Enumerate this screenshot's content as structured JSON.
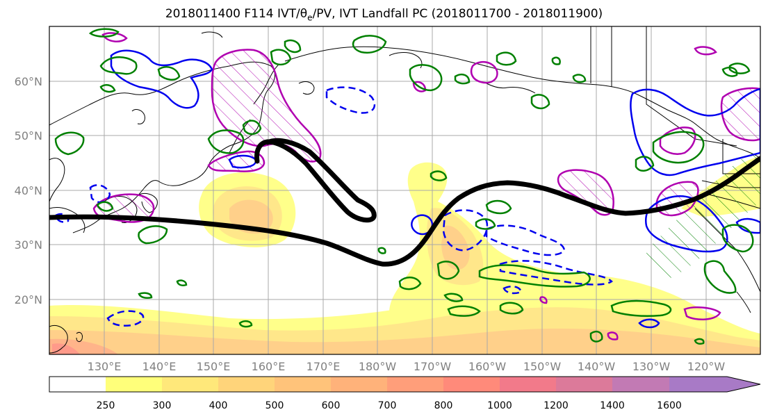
{
  "title": {
    "prefix": "2018011400 F114 IVT/",
    "theta": "θ",
    "theta_sub": "e",
    "suffix": "/PV, IVT Landfall PC (2018011700 - 2018011900)"
  },
  "map": {
    "projection": "cylindrical",
    "lon_range": [
      120,
      250
    ],
    "lat_range": [
      10,
      70
    ],
    "grid": true,
    "lat_ticks": [
      "20°N",
      "30°N",
      "40°N",
      "50°N",
      "60°N"
    ],
    "lon_ticks": [
      "130°E",
      "140°E",
      "150°E",
      "160°E",
      "170°E",
      "180°W",
      "170°W",
      "160°W",
      "150°W",
      "140°W",
      "130°W",
      "120°W"
    ]
  },
  "layers": {
    "ivt_fill": "yellow-orange-purple shaded IVT",
    "theta_e": "green contours",
    "pv_positive": "blue solid contours",
    "pv_negative": "blue dashed contours",
    "landfall_pc": "magenta hatched contours",
    "jet_axis": "black thick line"
  },
  "colorbar": {
    "labels": [
      "250",
      "300",
      "400",
      "500",
      "600",
      "700",
      "800",
      "1000",
      "1200",
      "1400",
      "1600"
    ],
    "colors": [
      "#ffffff",
      "#ffff7a",
      "#ffe87a",
      "#ffd47a",
      "#ffc37a",
      "#ffb27a",
      "#ff9e7a",
      "#ff8a7a",
      "#f27a8a",
      "#dc7a9a",
      "#c27ab4",
      "#a87ac6"
    ]
  }
}
